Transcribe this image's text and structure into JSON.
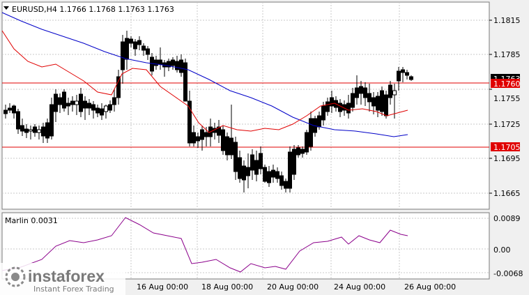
{
  "header": {
    "symbol_ohlc": "EURUSD,H4  1.1766 1.1768 1.1763 1.1763",
    "collapse_glyph": "triangle-down-icon"
  },
  "price_axis": {
    "ticks": [
      "1.1815",
      "1.1785",
      "1.1755",
      "1.1725",
      "1.1695",
      "1.1665"
    ],
    "current_price": "1.1763",
    "levels": [
      {
        "label": "1.1760",
        "value": 1.176,
        "color": "#e00000"
      },
      {
        "label": "1.1705",
        "value": 1.1705,
        "color": "#e00000"
      }
    ]
  },
  "indicator": {
    "label": "Marlin 0.0031",
    "ticks": [
      "0.0089",
      "0.00",
      "-0.0068"
    ],
    "color": "#8b008b"
  },
  "time_axis": {
    "ticks": [
      "16 Aug 00:00",
      "18 Aug 00:00",
      "20 Aug 00:00",
      "24 Aug 00:00",
      "26 Aug 00:00"
    ]
  },
  "watermark": {
    "brand": "instaforex",
    "tagline": "Instant Forex Trading"
  },
  "colors": {
    "candle": "#000000",
    "ma_fast": "#e00000",
    "ma_slow": "#0000c8",
    "grid": "#c0c0c0",
    "level": "#e00000"
  }
}
